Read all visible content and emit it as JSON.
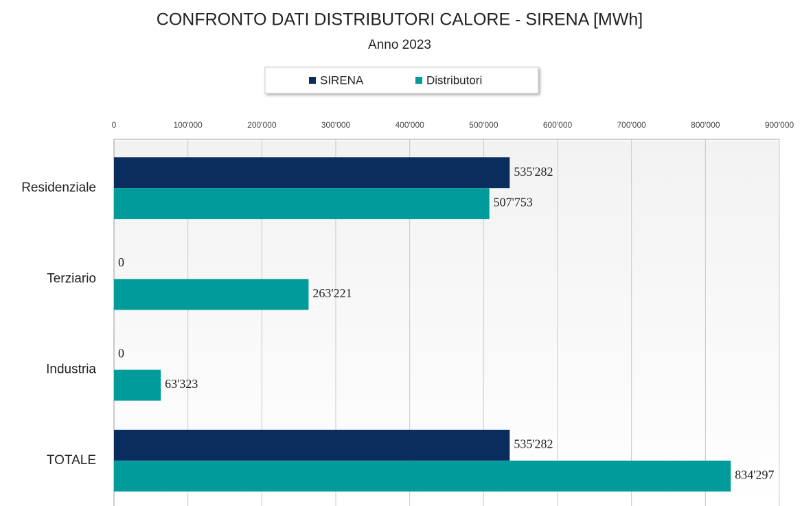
{
  "chart_data": {
    "type": "hbar",
    "title": "CONFRONTO DATI DISTRIBUTORI CALORE - SIRENA [MWh]",
    "subtitle": "Anno 2023",
    "categories": [
      "Residenziale",
      "Terziario",
      "Industria",
      "TOTALE"
    ],
    "series": [
      {
        "name": "SIRENA",
        "color": "#0b2d5e",
        "values": [
          535282,
          0,
          0,
          535282
        ],
        "value_labels": [
          "535'282",
          "0",
          "0",
          "535'282"
        ]
      },
      {
        "name": "Distributori",
        "color": "#009b9a",
        "values": [
          507753,
          263221,
          63323,
          834297
        ],
        "value_labels": [
          "507'753",
          "263'221",
          "63'323",
          "834'297"
        ]
      }
    ],
    "xlim": [
      0,
      900000
    ],
    "xticks": [
      0,
      {
        "value": 100000,
        "label": "100'000"
      },
      {
        "value": 200000,
        "label": "200'000"
      },
      {
        "value": 300000,
        "label": "300'000"
      },
      {
        "value": 400000,
        "label": "400'000"
      },
      {
        "value": 500000,
        "label": "500'000"
      },
      {
        "value": 600000,
        "label": "600'000"
      },
      {
        "value": 700000,
        "label": "700'000"
      },
      {
        "value": 800000,
        "label": "800'000"
      },
      {
        "value": 900000,
        "label": "900'000"
      }
    ],
    "grid": true,
    "legend": "top"
  }
}
